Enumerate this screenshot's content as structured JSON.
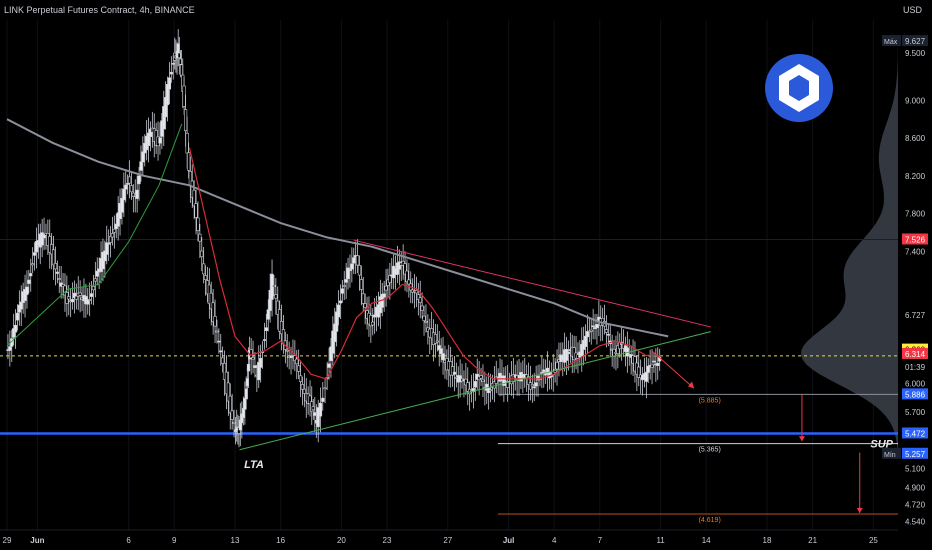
{
  "header": {
    "title": "LINK Perpetual Futures Contract, 4h, BINANCE",
    "currency": "USD"
  },
  "chart_data": {
    "type": "candlestick",
    "ylim": [
      4.45,
      9.85
    ],
    "x_ticks": [
      {
        "label": "29",
        "day": 0
      },
      {
        "label": "Jun",
        "day": 2
      },
      {
        "label": "6",
        "day": 8
      },
      {
        "label": "9",
        "day": 11
      },
      {
        "label": "13",
        "day": 15
      },
      {
        "label": "16",
        "day": 18
      },
      {
        "label": "20",
        "day": 22
      },
      {
        "label": "23",
        "day": 25
      },
      {
        "label": "27",
        "day": 29
      },
      {
        "label": "Jul",
        "day": 33
      },
      {
        "label": "4",
        "day": 36
      },
      {
        "label": "7",
        "day": 39
      },
      {
        "label": "11",
        "day": 43
      },
      {
        "label": "14",
        "day": 46
      },
      {
        "label": "18",
        "day": 50
      },
      {
        "label": "21",
        "day": 53
      },
      {
        "label": "25",
        "day": 57
      }
    ],
    "y_ticks": [
      "9.500",
      "9.000",
      "8.600",
      "8.200",
      "7.800",
      "7.400",
      "6.727",
      "6.294",
      "6.000",
      "5.700",
      "5.279",
      "5.100",
      "4.900",
      "4.720",
      "4.540"
    ],
    "price_badges": [
      {
        "label": "Máx",
        "value": "9.627",
        "bg": "#1b2230",
        "fg": "#c9ccd4"
      },
      {
        "label": "",
        "value": "7.526",
        "bg": "#f23645",
        "fg": "#ffffff"
      },
      {
        "label": "",
        "value": "6.360",
        "bg": "#ffeb3b",
        "fg": "#000000"
      },
      {
        "label": "",
        "value": "6.314",
        "bg": "#f23645",
        "fg": "#ffffff"
      },
      {
        "label": "",
        "value": "01:39",
        "bg": "#000000",
        "fg": "#c9ccd4"
      },
      {
        "label": "",
        "value": "5.886",
        "bg": "#2962ff",
        "fg": "#ffffff"
      },
      {
        "label": "",
        "value": "5.472",
        "bg": "#2962ff",
        "fg": "#ffffff"
      },
      {
        "label": "Mín",
        "value": "5.257",
        "bg": "#2962ff",
        "fg": "#ffffff"
      }
    ],
    "support_lines": [
      {
        "value": 7.526,
        "color": "#3a1216"
      },
      {
        "value": 6.294,
        "color": "#e8d84a",
        "dashed": true
      },
      {
        "value": 5.886,
        "color": "#8a8f9a"
      },
      {
        "value": 5.472,
        "color": "#2962ff"
      },
      {
        "value": 5.365,
        "color": "#d0d3da"
      },
      {
        "value": 4.619,
        "color": "#b8501e"
      }
    ],
    "close_series": [
      {
        "day": 0,
        "v": 6.35
      },
      {
        "day": 0.5,
        "v": 6.55
      },
      {
        "day": 1,
        "v": 6.85
      },
      {
        "day": 1.5,
        "v": 7.15
      },
      {
        "day": 2,
        "v": 7.45
      },
      {
        "day": 2.5,
        "v": 7.6
      },
      {
        "day": 3,
        "v": 7.4
      },
      {
        "day": 3.5,
        "v": 7.05
      },
      {
        "day": 4,
        "v": 6.9
      },
      {
        "day": 4.5,
        "v": 6.95
      },
      {
        "day": 5,
        "v": 6.85
      },
      {
        "day": 5.5,
        "v": 6.95
      },
      {
        "day": 6,
        "v": 7.15
      },
      {
        "day": 6.5,
        "v": 7.4
      },
      {
        "day": 7,
        "v": 7.6
      },
      {
        "day": 7.5,
        "v": 7.85
      },
      {
        "day": 8,
        "v": 8.15
      },
      {
        "day": 8.5,
        "v": 8.0
      },
      {
        "day": 9,
        "v": 8.4
      },
      {
        "day": 9.5,
        "v": 8.75
      },
      {
        "day": 10,
        "v": 8.5
      },
      {
        "day": 10.5,
        "v": 9.0
      },
      {
        "day": 11,
        "v": 9.45
      },
      {
        "day": 11.3,
        "v": 9.55
      },
      {
        "day": 11.6,
        "v": 9.1
      },
      {
        "day": 12,
        "v": 8.3
      },
      {
        "day": 12.5,
        "v": 7.7
      },
      {
        "day": 13,
        "v": 7.2
      },
      {
        "day": 13.5,
        "v": 6.8
      },
      {
        "day": 14,
        "v": 6.4
      },
      {
        "day": 14.5,
        "v": 5.95
      },
      {
        "day": 15,
        "v": 5.55
      },
      {
        "day": 15.3,
        "v": 5.45
      },
      {
        "day": 15.7,
        "v": 5.9
      },
      {
        "day": 16,
        "v": 6.3
      },
      {
        "day": 16.5,
        "v": 6.1
      },
      {
        "day": 17,
        "v": 6.5
      },
      {
        "day": 17.5,
        "v": 7.1
      },
      {
        "day": 18,
        "v": 6.6
      },
      {
        "day": 18.5,
        "v": 6.35
      },
      {
        "day": 19,
        "v": 6.2
      },
      {
        "day": 19.5,
        "v": 6.0
      },
      {
        "day": 20,
        "v": 5.75
      },
      {
        "day": 20.4,
        "v": 5.6
      },
      {
        "day": 21,
        "v": 6.0
      },
      {
        "day": 21.5,
        "v": 6.5
      },
      {
        "day": 22,
        "v": 6.9
      },
      {
        "day": 22.5,
        "v": 7.25
      },
      {
        "day": 23,
        "v": 7.3
      },
      {
        "day": 23.5,
        "v": 6.9
      },
      {
        "day": 24,
        "v": 6.6
      },
      {
        "day": 24.5,
        "v": 6.8
      },
      {
        "day": 25,
        "v": 7.05
      },
      {
        "day": 25.5,
        "v": 7.2
      },
      {
        "day": 26,
        "v": 7.25
      },
      {
        "day": 26.5,
        "v": 7.1
      },
      {
        "day": 27,
        "v": 6.9
      },
      {
        "day": 27.5,
        "v": 6.7
      },
      {
        "day": 28,
        "v": 6.5
      },
      {
        "day": 28.5,
        "v": 6.35
      },
      {
        "day": 29,
        "v": 6.2
      },
      {
        "day": 29.5,
        "v": 6.1
      },
      {
        "day": 30,
        "v": 6.0
      },
      {
        "day": 30.5,
        "v": 5.95
      },
      {
        "day": 31,
        "v": 6.05
      },
      {
        "day": 31.5,
        "v": 5.95
      },
      {
        "day": 32,
        "v": 6.0
      },
      {
        "day": 32.5,
        "v": 6.05
      },
      {
        "day": 33,
        "v": 6.0
      },
      {
        "day": 33.5,
        "v": 6.1
      },
      {
        "day": 34,
        "v": 6.05
      },
      {
        "day": 34.5,
        "v": 6.0
      },
      {
        "day": 35,
        "v": 6.05
      },
      {
        "day": 35.5,
        "v": 6.1
      },
      {
        "day": 36,
        "v": 6.15
      },
      {
        "day": 36.5,
        "v": 6.25
      },
      {
        "day": 37,
        "v": 6.35
      },
      {
        "day": 37.5,
        "v": 6.3
      },
      {
        "day": 38,
        "v": 6.4
      },
      {
        "day": 38.5,
        "v": 6.6
      },
      {
        "day": 39,
        "v": 6.7
      },
      {
        "day": 39.5,
        "v": 6.5
      },
      {
        "day": 40,
        "v": 6.35
      },
      {
        "day": 40.5,
        "v": 6.4
      },
      {
        "day": 41,
        "v": 6.3
      },
      {
        "day": 41.5,
        "v": 6.15
      },
      {
        "day": 42,
        "v": 6.05
      },
      {
        "day": 42.5,
        "v": 6.2
      },
      {
        "day": 43,
        "v": 6.3
      }
    ],
    "ma_red": [
      {
        "day": 12,
        "v": 8.5
      },
      {
        "day": 13,
        "v": 7.8
      },
      {
        "day": 14,
        "v": 7.1
      },
      {
        "day": 15,
        "v": 6.5
      },
      {
        "day": 16,
        "v": 6.3
      },
      {
        "day": 17,
        "v": 6.35
      },
      {
        "day": 18,
        "v": 6.45
      },
      {
        "day": 19,
        "v": 6.3
      },
      {
        "day": 20,
        "v": 6.1
      },
      {
        "day": 21,
        "v": 6.05
      },
      {
        "day": 22,
        "v": 6.35
      },
      {
        "day": 23,
        "v": 6.7
      },
      {
        "day": 24,
        "v": 6.85
      },
      {
        "day": 25,
        "v": 6.9
      },
      {
        "day": 26,
        "v": 7.05
      },
      {
        "day": 27,
        "v": 7.0
      },
      {
        "day": 28,
        "v": 6.8
      },
      {
        "day": 29,
        "v": 6.55
      },
      {
        "day": 30,
        "v": 6.3
      },
      {
        "day": 31,
        "v": 6.15
      },
      {
        "day": 32,
        "v": 6.05
      },
      {
        "day": 33,
        "v": 6.05
      },
      {
        "day": 34,
        "v": 6.05
      },
      {
        "day": 35,
        "v": 6.05
      },
      {
        "day": 36,
        "v": 6.1
      },
      {
        "day": 37,
        "v": 6.2
      },
      {
        "day": 38,
        "v": 6.3
      },
      {
        "day": 39,
        "v": 6.4
      },
      {
        "day": 40,
        "v": 6.45
      },
      {
        "day": 41,
        "v": 6.4
      },
      {
        "day": 42,
        "v": 6.3
      },
      {
        "day": 43,
        "v": 6.3
      }
    ],
    "ma_green": [
      {
        "day": 0,
        "v": 6.4
      },
      {
        "day": 2,
        "v": 6.7
      },
      {
        "day": 4,
        "v": 7.0
      },
      {
        "day": 6,
        "v": 7.05
      },
      {
        "day": 8,
        "v": 7.5
      },
      {
        "day": 10,
        "v": 8.1
      },
      {
        "day": 11.5,
        "v": 8.75
      }
    ],
    "ma_gray": [
      {
        "day": 0,
        "v": 8.8
      },
      {
        "day": 3,
        "v": 8.55
      },
      {
        "day": 6,
        "v": 8.35
      },
      {
        "day": 9,
        "v": 8.2
      },
      {
        "day": 12,
        "v": 8.1
      },
      {
        "day": 15,
        "v": 7.9
      },
      {
        "day": 18,
        "v": 7.7
      },
      {
        "day": 21,
        "v": 7.55
      },
      {
        "day": 24,
        "v": 7.45
      },
      {
        "day": 27,
        "v": 7.3
      },
      {
        "day": 30,
        "v": 7.15
      },
      {
        "day": 33,
        "v": 7.0
      },
      {
        "day": 36,
        "v": 6.85
      },
      {
        "day": 39,
        "v": 6.65
      },
      {
        "day": 42,
        "v": 6.55
      },
      {
        "day": 43.5,
        "v": 6.5
      }
    ],
    "trendlines": [
      {
        "name": "LTA",
        "color": "#4caf50",
        "from": {
          "day": 15.3,
          "v": 5.3
        },
        "to": {
          "day": 46.3,
          "v": 6.55
        }
      },
      {
        "name": "",
        "color": "#e0336b",
        "from": {
          "day": 22.8,
          "v": 7.52
        },
        "to": {
          "day": 46.3,
          "v": 6.6
        }
      }
    ],
    "projection": {
      "color": "#f23645",
      "path": [
        {
          "day": 42.4,
          "v": 6.35
        },
        {
          "day": 45.2,
          "v": 5.95
        }
      ]
    },
    "targets": [
      {
        "label": "(5.885)",
        "day": 45.5,
        "v": 5.886,
        "color": "#e67e22"
      },
      {
        "label": "(5.365)",
        "day": 45.5,
        "v": 5.365,
        "color": "#d0d3da"
      },
      {
        "label": "(4.619)",
        "day": 45.5,
        "v": 4.619,
        "color": "#e67e22"
      }
    ],
    "annotations": [
      {
        "text": "LTA",
        "day": 15.6,
        "v": 5.15
      },
      {
        "text": "SUP",
        "day": 56.8,
        "v": 5.365
      }
    ],
    "drop_arrows": [
      {
        "day": 52.3,
        "from": 5.886,
        "to": 5.39,
        "color": "#f23645"
      },
      {
        "day": 56.1,
        "from": 5.27,
        "to": 4.63,
        "color": "#f23645"
      }
    ]
  },
  "logo": {
    "name": "chainlink-logo-icon",
    "color": "#2a5ada"
  },
  "colors": {
    "bg": "#000000",
    "grid": "#12161e",
    "up": "#c9ccd4",
    "down": "#c9ccd4",
    "axis_text": "#c9ccd4"
  }
}
